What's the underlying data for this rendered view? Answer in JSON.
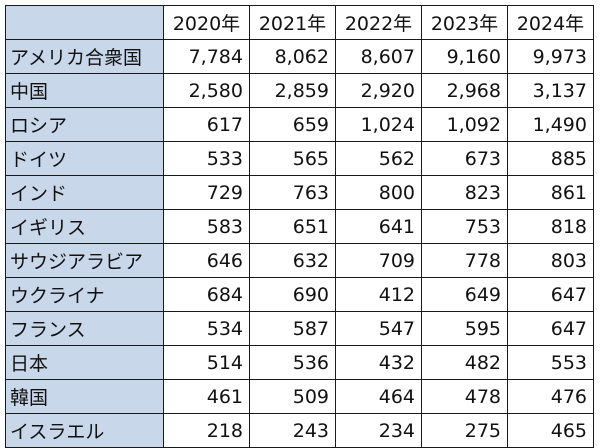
{
  "table": {
    "corner": "",
    "columns": [
      "2020年",
      "2021年",
      "2022年",
      "2023年",
      "2024年"
    ],
    "rows": [
      {
        "country": "アメリカ合衆国",
        "values": [
          "7,784",
          "8,062",
          "8,607",
          "9,160",
          "9,973"
        ]
      },
      {
        "country": "中国",
        "values": [
          "2,580",
          "2,859",
          "2,920",
          "2,968",
          "3,137"
        ]
      },
      {
        "country": "ロシア",
        "values": [
          "617",
          "659",
          "1,024",
          "1,092",
          "1,490"
        ]
      },
      {
        "country": "ドイツ",
        "values": [
          "533",
          "565",
          "562",
          "673",
          "885"
        ]
      },
      {
        "country": "インド",
        "values": [
          "729",
          "763",
          "800",
          "823",
          "861"
        ]
      },
      {
        "country": "イギリス",
        "values": [
          "583",
          "651",
          "641",
          "753",
          "818"
        ]
      },
      {
        "country": "サウジアラビア",
        "values": [
          "646",
          "632",
          "709",
          "778",
          "803"
        ]
      },
      {
        "country": "ウクライナ",
        "values": [
          "684",
          "690",
          "412",
          "649",
          "647"
        ]
      },
      {
        "country": "フランス",
        "values": [
          "534",
          "587",
          "547",
          "595",
          "647"
        ]
      },
      {
        "country": "日本",
        "values": [
          "514",
          "536",
          "432",
          "482",
          "553"
        ]
      },
      {
        "country": "韓国",
        "values": [
          "461",
          "509",
          "464",
          "478",
          "476"
        ]
      },
      {
        "country": "イスラエル",
        "values": [
          "218",
          "243",
          "234",
          "275",
          "465"
        ]
      }
    ]
  },
  "colors": {
    "header_fill": "#c9d7ea",
    "border": "#1a1a1a"
  }
}
